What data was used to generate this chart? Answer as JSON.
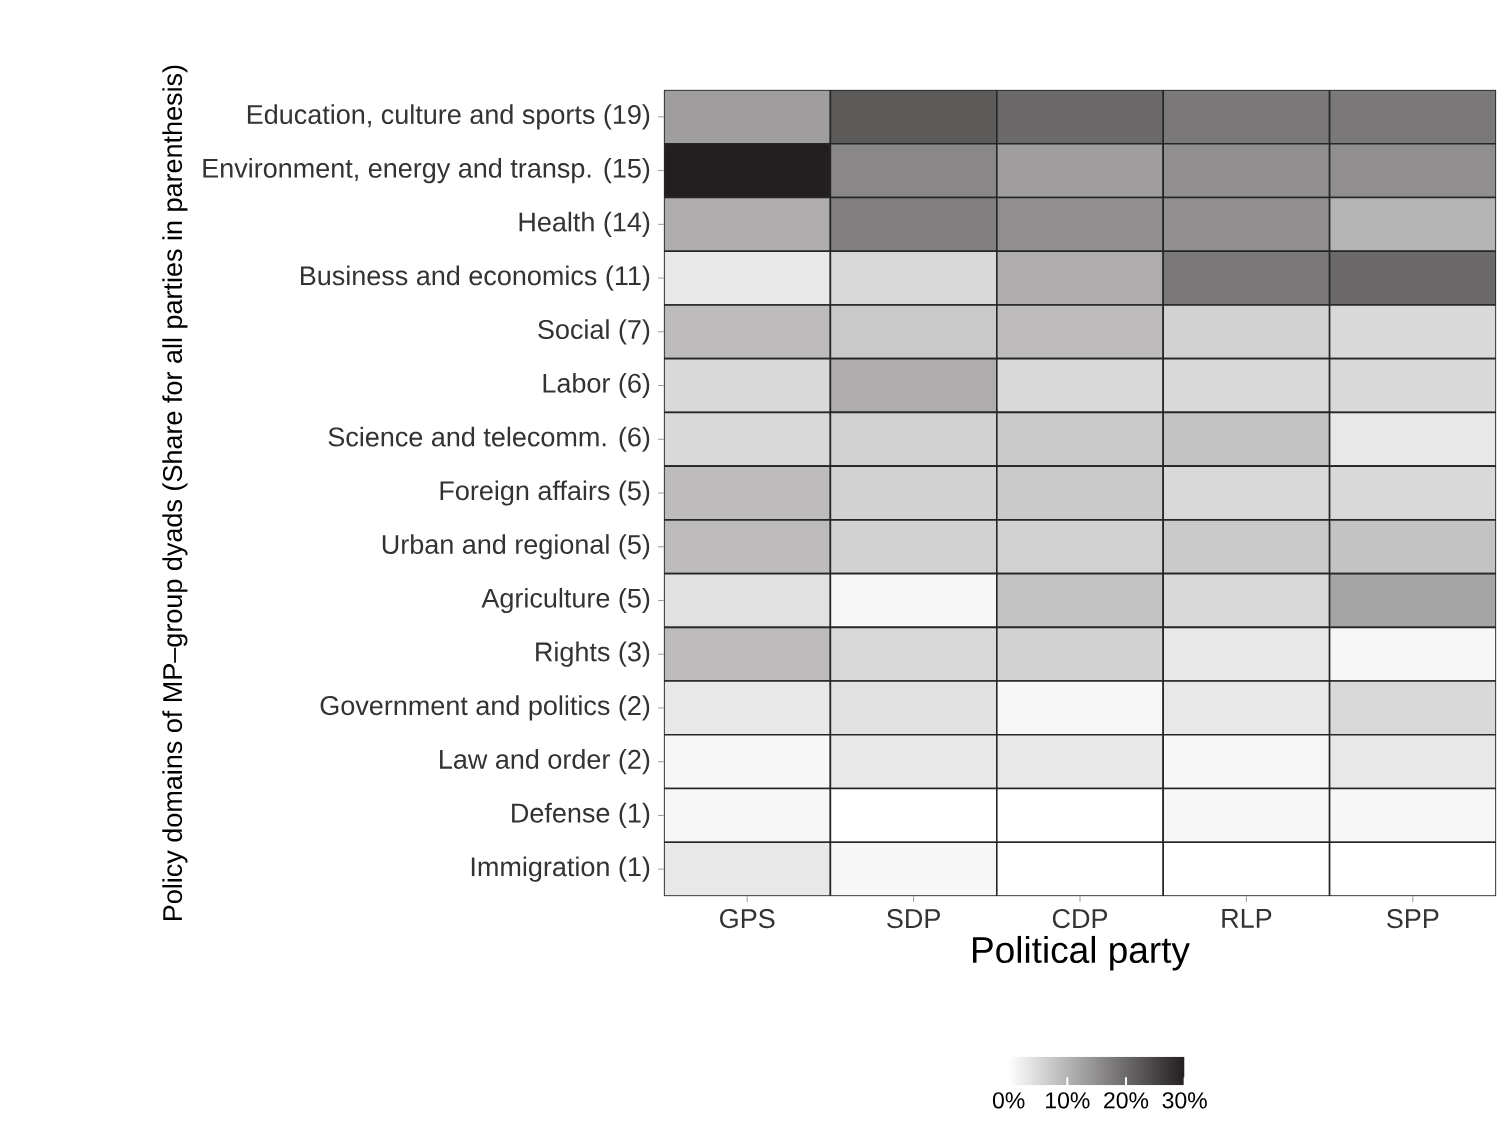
{
  "chart_data": {
    "type": "heatmap",
    "xlabel": "Political party",
    "ylabel": "Policy domains of MP–group dyads (Share for all parties in parenthesis)",
    "categories": [
      "GPS",
      "SDP",
      "CDP",
      "RLP",
      "SPP"
    ],
    "y_categories": [
      "Education, culture and sports (19)",
      "Environment, energy and transp. (15)",
      "Health (14)",
      "Business and economics (11)",
      "Social (7)",
      "Labor (6)",
      "Science and telecomm. (6)",
      "Foreign affairs (5)",
      "Urban and regional (5)",
      "Agriculture (5)",
      "Rights (3)",
      "Government and politics (2)",
      "Law and order (2)",
      "Defense (1)",
      "Immigration (1)"
    ],
    "cells": [
      [
        13,
        22,
        20,
        18,
        18
      ],
      [
        30,
        16,
        13,
        15,
        15
      ],
      [
        11,
        17,
        15,
        15,
        10
      ],
      [
        3,
        5,
        11,
        18,
        20
      ],
      [
        9,
        7,
        9,
        6,
        5
      ],
      [
        5,
        11,
        5,
        5,
        5
      ],
      [
        5,
        6,
        7,
        8,
        3
      ],
      [
        9,
        6,
        7,
        5,
        5
      ],
      [
        9,
        6,
        6,
        7,
        8
      ],
      [
        4,
        1,
        8,
        5,
        12
      ],
      [
        9,
        5,
        6,
        3,
        1
      ],
      [
        3,
        4,
        1,
        3,
        5
      ],
      [
        1,
        3,
        3,
        1,
        3
      ],
      [
        1,
        0,
        0,
        1,
        1
      ],
      [
        3,
        1,
        0,
        0,
        0
      ]
    ],
    "clim": [
      0,
      30
    ],
    "cticks": [
      {
        "value": 0,
        "label": "0%"
      },
      {
        "value": 10,
        "label": "10%"
      },
      {
        "value": 20,
        "label": "20%"
      },
      {
        "value": 30,
        "label": "30%"
      }
    ]
  }
}
